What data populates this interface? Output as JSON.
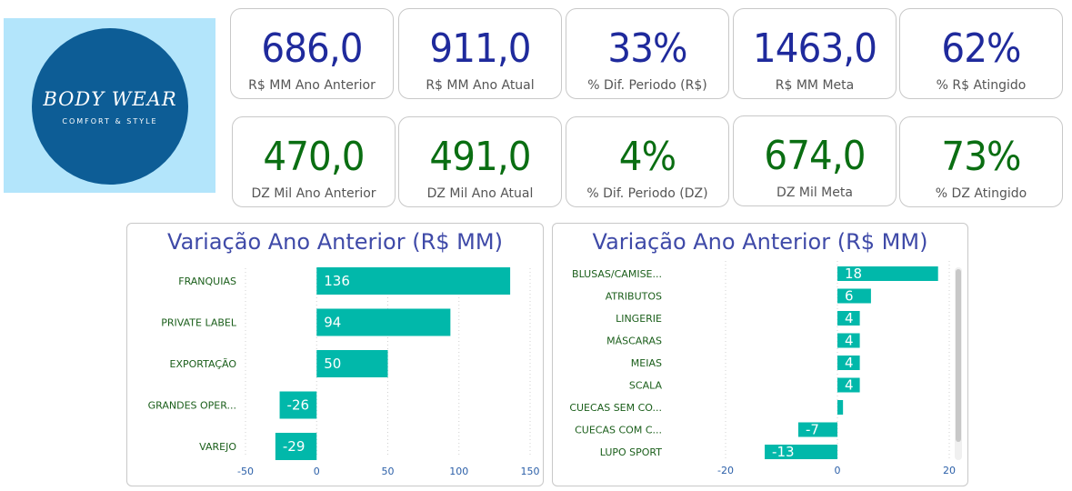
{
  "logo": {
    "brand": "BODY WEAR",
    "tagline": "COMFORT & STYLE"
  },
  "kpis_rs": [
    {
      "value": "686,0",
      "label": "R$ MM Ano Anterior"
    },
    {
      "value": "911,0",
      "label": "R$ MM Ano Atual"
    },
    {
      "value": "33%",
      "label": "% Dif. Periodo (R$)"
    },
    {
      "value": "1463,0",
      "label": "R$ MM Meta"
    },
    {
      "value": "62%",
      "label": "% R$ Atingido"
    }
  ],
  "kpis_dz": [
    {
      "value": "470,0",
      "label": "DZ Mil Ano Anterior"
    },
    {
      "value": "491,0",
      "label": "DZ Mil Ano Atual"
    },
    {
      "value": "4%",
      "label": "% Dif. Periodo (DZ)"
    },
    {
      "value": "674,0",
      "label": "DZ Mil Meta"
    },
    {
      "value": "73%",
      "label": "% DZ Atingido"
    }
  ],
  "colors": {
    "bar": "#01b8aa",
    "blue_kpi": "#1f2a9c",
    "green_kpi": "#0a6e12",
    "title": "#3f4aa8",
    "category_text": "#1a5e1a",
    "tick_text": "#2b5fa8"
  },
  "chart_data": [
    {
      "type": "bar",
      "orientation": "horizontal",
      "title": "Variação Ano Anterior (R$ MM)",
      "categories": [
        "FRANQUIAS",
        "PRIVATE LABEL",
        "EXPORTAÇÃO",
        "GRANDES OPER...",
        "VAREJO"
      ],
      "values": [
        136,
        94,
        50,
        -26,
        -29
      ],
      "data_labels": [
        "136",
        "94",
        "50",
        "-26",
        "-29"
      ],
      "xlim": [
        -50,
        150
      ],
      "xticks": [
        -50,
        0,
        50,
        100,
        150
      ],
      "xtick_labels": [
        "-50",
        "0",
        "50",
        "100",
        "150"
      ],
      "grid": true
    },
    {
      "type": "bar",
      "orientation": "horizontal",
      "title": "Variação Ano Anterior (R$ MM)",
      "categories": [
        "BLUSAS/CAMISE...",
        "ATRIBUTOS",
        "LINGERIE",
        "MÁSCARAS",
        "MEIAS",
        "SCALA",
        "CUECAS SEM CO...",
        "CUECAS COM C...",
        "LUPO SPORT"
      ],
      "values": [
        18,
        6,
        4,
        4,
        4,
        4,
        1,
        -7,
        -13
      ],
      "data_labels": [
        "18",
        "6",
        "4",
        "4",
        "4",
        "4",
        "",
        "-7",
        "-13"
      ],
      "xlim": [
        -20,
        20
      ],
      "xticks": [
        -20,
        0,
        20
      ],
      "xtick_labels": [
        "-20",
        "0",
        "20"
      ],
      "grid": true
    }
  ]
}
